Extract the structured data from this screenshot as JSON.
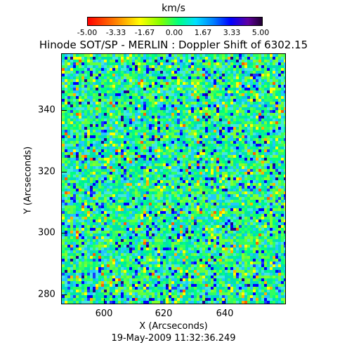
{
  "colorbar": {
    "unit": "km/s",
    "ticks": [
      "-5.00",
      "-3.33",
      "-1.67",
      "0.00",
      "1.67",
      "3.33",
      "5.00"
    ],
    "range": [
      -5.0,
      5.0
    ]
  },
  "title": "Hinode SOT/SP - MERLIN : Doppler Shift of 6302.15",
  "x_axis": {
    "label": "X (Arcseconds)",
    "ticks": [
      "600",
      "620",
      "640"
    ]
  },
  "y_axis": {
    "label": "Y (Arcseconds)",
    "ticks": [
      "340",
      "320",
      "300",
      "280"
    ]
  },
  "timestamp": "19-May-2009 11:32:36.249",
  "colors": {
    "background_field": "#2fe07a",
    "redshift_strong": "#0000ff",
    "blueshift_mild": "#ffff00"
  }
}
